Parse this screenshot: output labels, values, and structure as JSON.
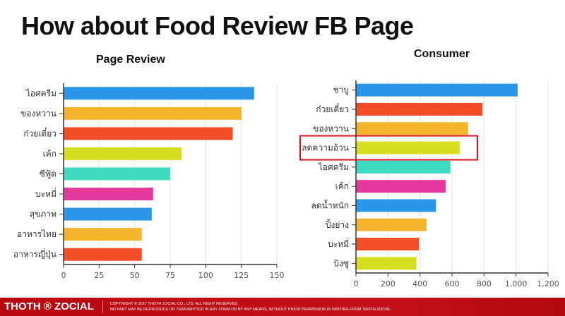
{
  "slide_title": "How about Food Review FB Page",
  "footer": {
    "brand": "THOTH ® ZOCIAL",
    "copyright_line1": "COPYRIGHT © 2017 THOTH ZOCIAL CO., LTD. ALL RIGHT RESERVED.",
    "copyright_line2": "NO PART MAY BE REPRODUCE OR TRANSMITTED IN ANY FORM OR BY ANY MEANS, WITHOUT PRIOR PERMISSION IN WRITING FROM THOTH ZOCIAL."
  },
  "chart_data": [
    {
      "type": "bar",
      "orientation": "horizontal",
      "title": "Page Review",
      "categories": [
        "ไอศครีม",
        "ของหวาน",
        "ก๋วยเตี๋ยว",
        "เค้ก",
        "ซีฟู้ด",
        "บะหมี่",
        "สุขภาพ",
        "อาหารไทย",
        "อาหารญี่ปุ่น"
      ],
      "values": [
        134,
        125,
        119,
        83,
        75,
        63,
        62,
        55,
        55
      ],
      "colors": [
        "#2b95e8",
        "#f4b52c",
        "#f24d28",
        "#d5de1f",
        "#3ddcc0",
        "#e23a9c",
        "#2b95e8",
        "#f4b52c",
        "#f24d28"
      ],
      "xlim": [
        0,
        150
      ],
      "xticks": [
        "0",
        "25",
        "50",
        "75",
        "100",
        "125",
        "150"
      ],
      "grid": true
    },
    {
      "type": "bar",
      "orientation": "horizontal",
      "title": "Consumer",
      "categories": [
        "ชาบู",
        "ก๋วยเตี๋ยว",
        "ของหวาน",
        "ลดความอ้วน",
        "ไอศครีม",
        "เค้ก",
        "ลดน้ำหนัก",
        "ปิ้งย่าง",
        "บะหมี่",
        "บิงซู"
      ],
      "values": [
        1010,
        790,
        700,
        648,
        590,
        560,
        500,
        440,
        393,
        378
      ],
      "colors": [
        "#2b95e8",
        "#f24d28",
        "#f4b52c",
        "#d5de1f",
        "#3ddcc0",
        "#e23a9c",
        "#2b95e8",
        "#f4b52c",
        "#f24d28",
        "#d5de1f"
      ],
      "xlim": [
        0,
        1200
      ],
      "xticks": [
        "0",
        "200",
        "400",
        "600",
        "800",
        "1,000",
        "1,200"
      ],
      "grid": true,
      "highlighted_category": "ลดความอ้วน",
      "highlight_color": "#e0101a"
    }
  ]
}
